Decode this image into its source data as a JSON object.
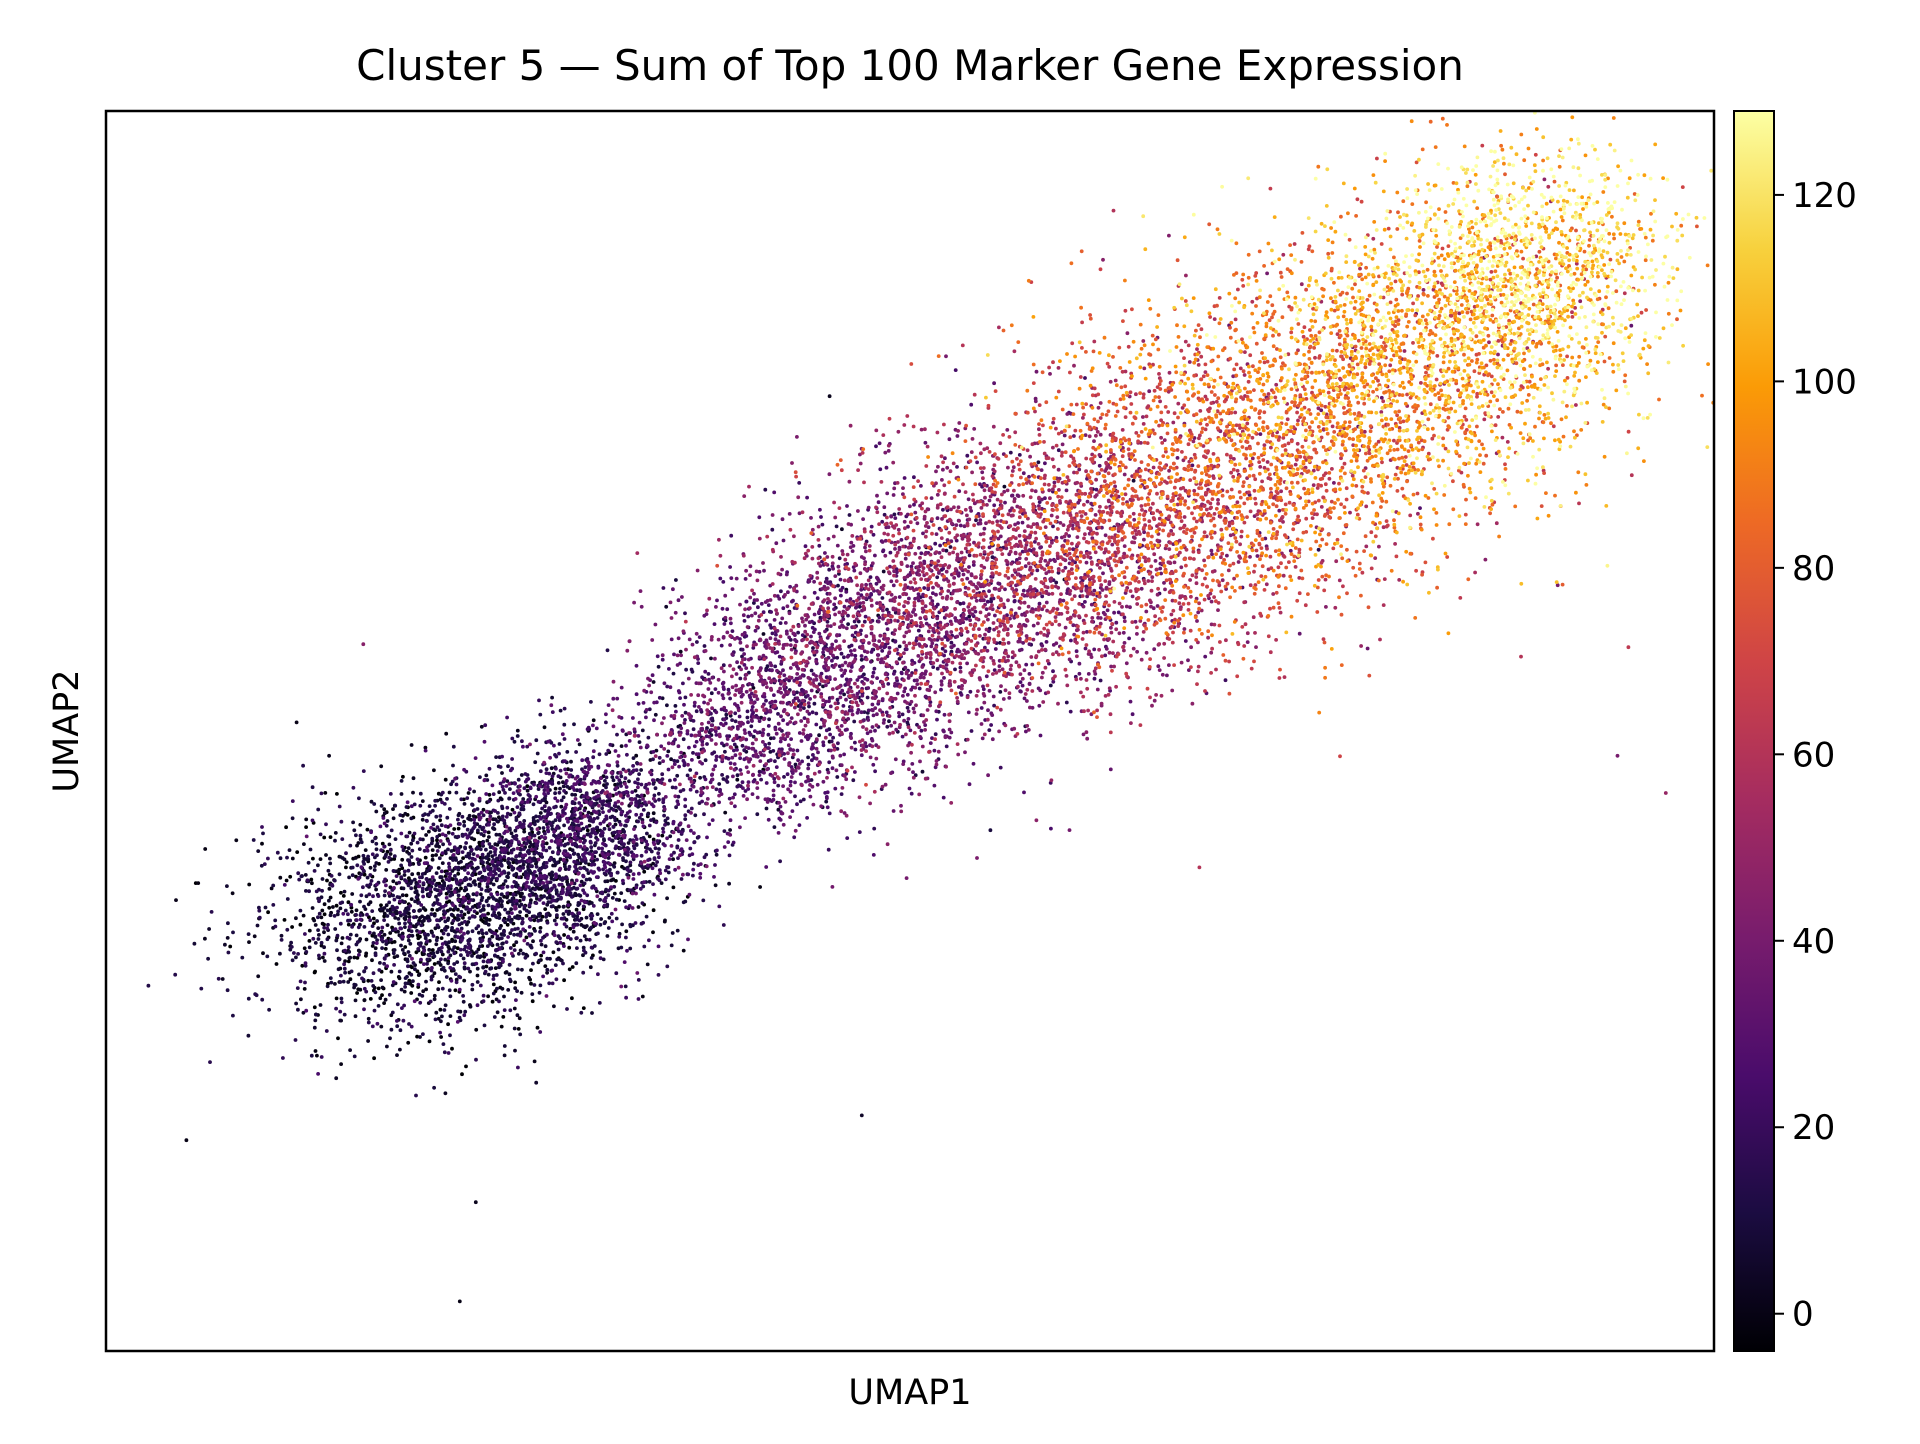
{
  "chart_data": {
    "type": "scatter",
    "title": "Cluster 5 — Sum of Top 100 Marker Gene Expression",
    "xlabel": "UMAP1",
    "ylabel": "UMAP2",
    "x_ticks_shown": false,
    "y_ticks_shown": false,
    "grid": false,
    "legend": "none",
    "xlim": [
      0,
      1
    ],
    "ylim": [
      0,
      1
    ],
    "colorbar": {
      "colormap": "inferno",
      "range": [
        -4,
        129
      ],
      "ticks": [
        0,
        20,
        40,
        60,
        80,
        100,
        120
      ],
      "tick_labels": [
        "0",
        "20",
        "40",
        "60",
        "80",
        "100",
        "120"
      ]
    },
    "colormap_stops": [
      "#000004",
      "#1b0c41",
      "#4a0c6b",
      "#781c6d",
      "#a52c60",
      "#cf4446",
      "#ed6925",
      "#fb9b06",
      "#f7d13d",
      "#fcffa4"
    ],
    "point_count_estimate": 14000,
    "density_path": [
      {
        "x": 0.16,
        "y": 0.33,
        "v": 5,
        "spread": 0.05
      },
      {
        "x": 0.24,
        "y": 0.37,
        "v": 10,
        "spread": 0.045
      },
      {
        "x": 0.31,
        "y": 0.43,
        "v": 18,
        "spread": 0.035
      },
      {
        "x": 0.39,
        "y": 0.49,
        "v": 28,
        "spread": 0.04
      },
      {
        "x": 0.47,
        "y": 0.57,
        "v": 36,
        "spread": 0.05
      },
      {
        "x": 0.55,
        "y": 0.62,
        "v": 45,
        "spread": 0.055
      },
      {
        "x": 0.63,
        "y": 0.66,
        "v": 60,
        "spread": 0.06
      },
      {
        "x": 0.7,
        "y": 0.71,
        "v": 78,
        "spread": 0.065
      },
      {
        "x": 0.78,
        "y": 0.77,
        "v": 92,
        "spread": 0.06
      },
      {
        "x": 0.85,
        "y": 0.83,
        "v": 105,
        "spread": 0.055
      },
      {
        "x": 0.91,
        "y": 0.91,
        "v": 122,
        "spread": 0.04
      }
    ],
    "outliers": [
      {
        "x": 0.05,
        "y": 0.17,
        "v": 0
      },
      {
        "x": 0.22,
        "y": 0.04,
        "v": 0
      },
      {
        "x": 0.23,
        "y": 0.12,
        "v": 2
      },
      {
        "x": 0.16,
        "y": 0.57,
        "v": 45
      },
      {
        "x": 0.47,
        "y": 0.19,
        "v": 5
      },
      {
        "x": 0.45,
        "y": 0.77,
        "v": 2
      },
      {
        "x": 0.62,
        "y": 0.88,
        "v": 45
      },
      {
        "x": 0.94,
        "y": 0.48,
        "v": 40
      },
      {
        "x": 0.97,
        "y": 0.45,
        "v": 50
      },
      {
        "x": 0.88,
        "y": 0.56,
        "v": 60
      },
      {
        "x": 0.95,
        "y": 0.9,
        "v": 115
      },
      {
        "x": 0.68,
        "y": 0.39,
        "v": 60
      },
      {
        "x": 0.55,
        "y": 0.42,
        "v": 10
      }
    ]
  }
}
